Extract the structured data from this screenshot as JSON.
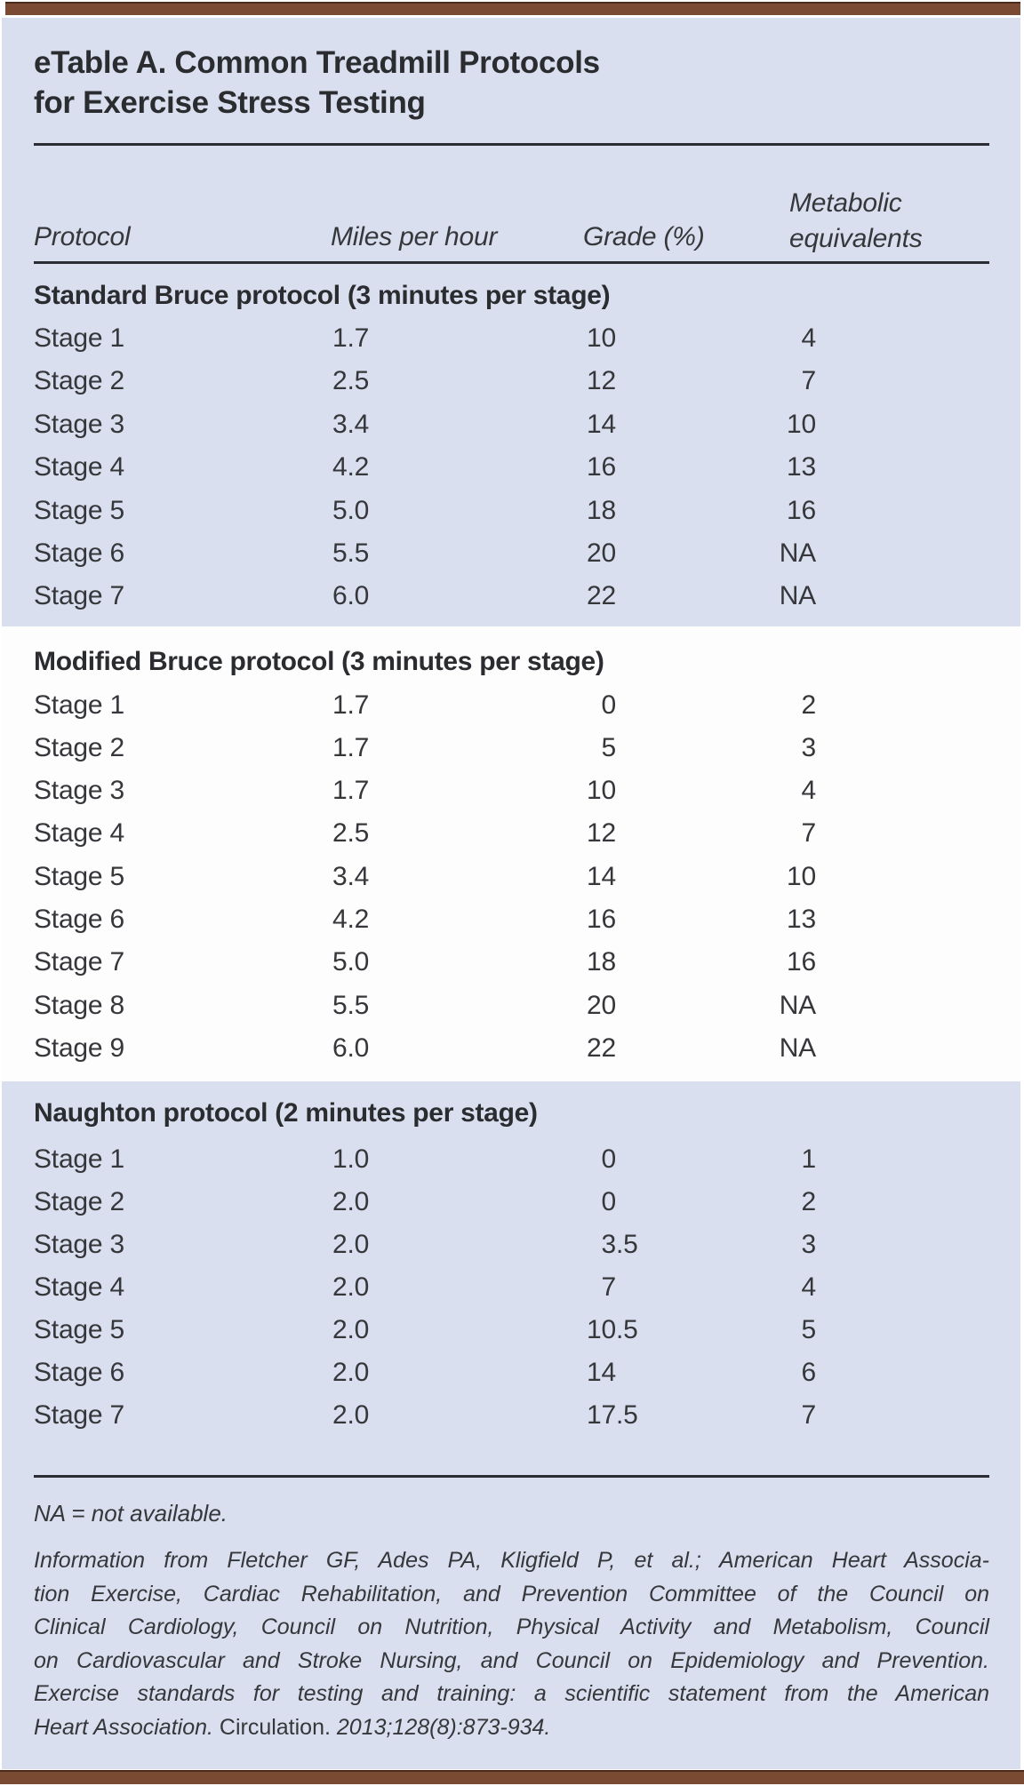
{
  "colors": {
    "blue": "#d9dfee",
    "white-band": "#fdfdfe",
    "brown": "#7a4a33",
    "brown-dark": "#4c2b1c",
    "rule": "#2c2d33",
    "ink": "#36373b",
    "ink-strong": "#2b2c30"
  },
  "table": {
    "title_lines": [
      "eTable A. Common Treadmill Protocols",
      "for Exercise Stress Testing"
    ],
    "columns": {
      "protocol": "Protocol",
      "mph": "Miles per hour",
      "grade": "Grade (%)",
      "mets_line1": "Metabolic",
      "mets_line2": "equivalents"
    },
    "sections": [
      {
        "header": "Standard Bruce protocol (3 minutes per stage)",
        "shaded": true,
        "rows": [
          [
            "Stage 1",
            "1.7",
            "10",
            "4"
          ],
          [
            "Stage 2",
            "2.5",
            "12",
            "7"
          ],
          [
            "Stage 3",
            "3.4",
            "14",
            "10"
          ],
          [
            "Stage 4",
            "4.2",
            "16",
            "13"
          ],
          [
            "Stage 5",
            "5.0",
            "18",
            "16"
          ],
          [
            "Stage 6",
            "5.5",
            "20",
            "NA"
          ],
          [
            "Stage 7",
            "6.0",
            "22",
            "NA"
          ]
        ]
      },
      {
        "header": "Modified Bruce protocol (3 minutes per stage)",
        "shaded": false,
        "rows": [
          [
            "Stage 1",
            "1.7",
            "0",
            "2"
          ],
          [
            "Stage 2",
            "1.7",
            "5",
            "3"
          ],
          [
            "Stage 3",
            "1.7",
            "10",
            "4"
          ],
          [
            "Stage 4",
            "2.5",
            "12",
            "7"
          ],
          [
            "Stage 5",
            "3.4",
            "14",
            "10"
          ],
          [
            "Stage 6",
            "4.2",
            "16",
            "13"
          ],
          [
            "Stage 7",
            "5.0",
            "18",
            "16"
          ],
          [
            "Stage 8",
            "5.5",
            "20",
            "NA"
          ],
          [
            "Stage 9",
            "6.0",
            "22",
            "NA"
          ]
        ]
      },
      {
        "header": "Naughton protocol (2 minutes per stage)",
        "shaded": true,
        "rows": [
          [
            "Stage 1",
            "1.0",
            "0",
            "1"
          ],
          [
            "Stage 2",
            "2.0",
            "0",
            "2"
          ],
          [
            "Stage 3",
            "2.0",
            "3.5",
            "3"
          ],
          [
            "Stage 4",
            "2.0",
            "7",
            "4"
          ],
          [
            "Stage 5",
            "2.0",
            "10.5",
            "5"
          ],
          [
            "Stage 6",
            "2.0",
            "14",
            "6"
          ],
          [
            "Stage 7",
            "2.0",
            "17.5",
            "7"
          ]
        ]
      }
    ],
    "abbrev_note": "NA = not available.",
    "footnote": {
      "lines": [
        "Information from Fletcher GF, Ades PA, Kligfield P, et al.; American Heart Associa-",
        "tion Exercise, Cardiac Rehabilitation, and Prevention Committee of the Council on",
        "Clinical Cardiology, Council on Nutrition, Physical Activity and Metabolism, Council",
        "on Cardiovascular and Stroke Nursing, and Council on Epidemiology and Prevention.",
        "Exercise standards for testing and training: a scientific statement from the American"
      ],
      "last_line_italic1": "Heart Association. ",
      "last_line_roman": "Circulation.",
      "last_line_italic2": " 2013;128(8):873-934."
    }
  }
}
